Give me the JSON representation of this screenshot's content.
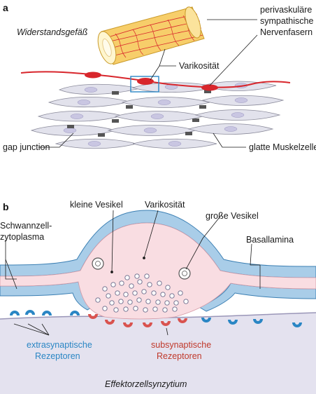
{
  "panel_a": {
    "letter": "a",
    "vessel_label": "Widerstandsgefäß",
    "nerve_label_lines": [
      "perivaskuläre",
      "sympathische",
      "Nervenfasern"
    ],
    "varicosity_label": "Varikosität",
    "gap_junction_label": "gap junction",
    "smooth_muscle_label": "glatte Muskelzelle"
  },
  "panel_b": {
    "letter": "b",
    "small_vesicles_label": "kleine Vesikel",
    "varicosity_label": "Varikosität",
    "large_vesicles_label": "große Vesikel",
    "schwann_label_lines": [
      "Schwannzell-",
      "zytoplasma"
    ],
    "basal_lamina_label": "Basallamina",
    "extra_label_lines": [
      "extrasynaptische",
      "Rezeptoren"
    ],
    "sub_label_lines": [
      "subsynaptische",
      "Rezeptoren"
    ],
    "effector_label": "Effektorzellsynzytium"
  },
  "colors": {
    "nerve_red": "#d8262c",
    "receptor_blue": "#2a86c4",
    "receptor_red": "#d9534f",
    "schwann_blue": "#a9cde8",
    "varicosity_pink": "#f9dde2",
    "muscle_gray": "#e2e2ec",
    "nucleus_lilac": "#c9c6e2",
    "vessel_yellow": "#f7ce6a"
  }
}
